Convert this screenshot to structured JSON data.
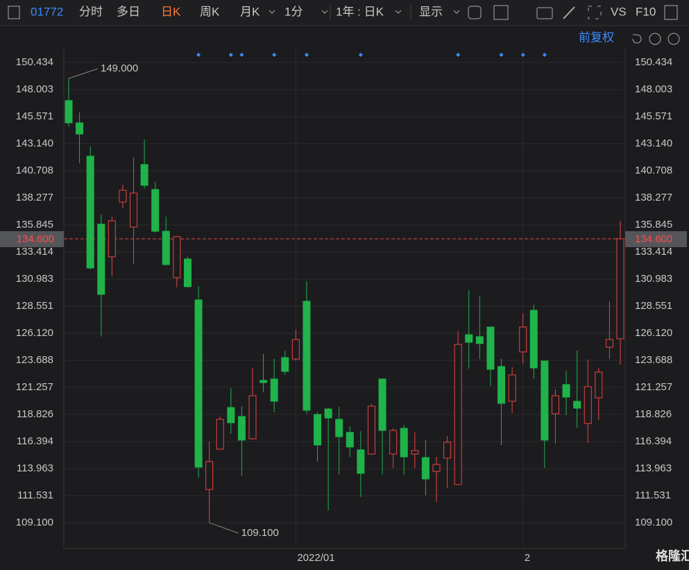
{
  "toolbar": {
    "code": "01772",
    "tabs": [
      "分时",
      "多日",
      "日K",
      "周K",
      "月K",
      "1分",
      "1年 : 日K",
      "显示"
    ],
    "active_tab": "日K",
    "right_items": [
      "VS",
      "F10"
    ],
    "adjust": "前复权",
    "watermark": "格隆汇"
  },
  "chart_data": {
    "type": "candlestick",
    "categories": [
      null,
      null,
      null,
      null,
      null,
      null,
      null,
      null,
      null,
      null,
      null,
      null,
      null,
      null,
      null,
      null,
      null,
      null,
      null,
      null,
      null,
      "2022/01",
      null,
      null,
      null,
      null,
      null,
      null,
      null,
      null,
      null,
      null,
      null,
      null,
      null,
      null,
      null,
      null,
      null,
      null,
      null,
      null,
      "2",
      null,
      null,
      null,
      null,
      null,
      null,
      null,
      null,
      null
    ],
    "open": [
      147.01,
      145.01,
      142.02,
      135.91,
      132.98,
      137.9,
      135.66,
      141.27,
      139.03,
      135.28,
      131.11,
      132.79,
      129.11,
      112.09,
      115.71,
      119.45,
      118.64,
      116.64,
      121.88,
      122.01,
      123.94,
      123.81,
      128.99,
      118.83,
      119.32,
      118.39,
      117.21,
      115.65,
      115.27,
      122.01,
      115.27,
      117.58,
      115.27,
      114.96,
      113.71,
      114.9,
      112.53,
      125.99,
      125.81,
      126.68,
      123.13,
      120.01,
      124.44,
      128.18,
      123.63,
      118.89,
      121.51,
      120.01,
      118.02,
      120.32,
      124.87,
      125.62
    ],
    "high": [
      149.0,
      145.95,
      142.89,
      136.78,
      136.59,
      139.46,
      141.89,
      143.51,
      139.71,
      136.59,
      134.85,
      132.98,
      130.36,
      116.39,
      118.64,
      121.2,
      119.57,
      123.0,
      124.25,
      123.81,
      124.56,
      126.43,
      130.8,
      119.01,
      119.45,
      119.51,
      117.77,
      117.33,
      119.76,
      122.07,
      117.58,
      117.89,
      117.21,
      116.52,
      115.02,
      116.89,
      126.31,
      129.99,
      129.42,
      126.68,
      123.81,
      123.07,
      127.93,
      128.68,
      123.63,
      121.07,
      122.75,
      124.56,
      123.75,
      123.0,
      128.99,
      136.22
    ],
    "low": [
      144.7,
      141.39,
      131.86,
      125.81,
      131.23,
      137.34,
      132.35,
      139.09,
      135.16,
      132.17,
      130.24,
      130.24,
      113.15,
      109.1,
      115.65,
      117.08,
      113.34,
      116.58,
      120.82,
      119.01,
      122.38,
      123.63,
      118.89,
      114.59,
      110.22,
      113.46,
      115.02,
      111.41,
      115.21,
      113.46,
      114.03,
      113.4,
      114.03,
      111.59,
      110.97,
      112.22,
      112.53,
      122.94,
      123.81,
      121.38,
      116.08,
      118.95,
      123.38,
      122.01,
      114.03,
      116.21,
      118.76,
      117.64,
      116.27,
      118.33,
      123.81,
      123.31
    ],
    "close": [
      145.01,
      144.01,
      131.98,
      129.61,
      136.22,
      138.96,
      138.71,
      139.4,
      135.28,
      132.29,
      134.79,
      130.3,
      114.09,
      114.59,
      118.39,
      118.08,
      116.52,
      120.51,
      121.69,
      120.01,
      122.69,
      125.56,
      119.2,
      116.08,
      118.51,
      116.83,
      115.9,
      113.53,
      119.57,
      117.39,
      117.39,
      115.02,
      115.58,
      113.03,
      114.34,
      116.33,
      125.12,
      125.31,
      125.19,
      122.88,
      119.82,
      122.38,
      126.68,
      123.0,
      116.52,
      120.51,
      120.38,
      119.39,
      121.32,
      122.63,
      125.56,
      134.6
    ],
    "up_color": "#e8443f",
    "down_color": "#1fb34a",
    "ylim": [
      106.79,
      151.68
    ],
    "yticks": [
      150.434,
      148.003,
      145.571,
      {
        "value": 143.14,
        "label": "143.140"
      },
      140.708,
      138.277,
      135.845,
      133.414,
      130.983,
      128.551,
      {
        "value": 126.12,
        "label": "126.120"
      },
      123.688,
      121.257,
      118.826,
      116.394,
      113.963,
      111.531,
      {
        "value": 109.1,
        "label": "109.100"
      }
    ],
    "annotations": [
      {
        "label": "149.000",
        "value": 149.0
      },
      {
        "label": "109.100",
        "value": 109.1
      }
    ],
    "current_price": {
      "label": "134.600",
      "value": 134.6
    },
    "grid": true
  }
}
